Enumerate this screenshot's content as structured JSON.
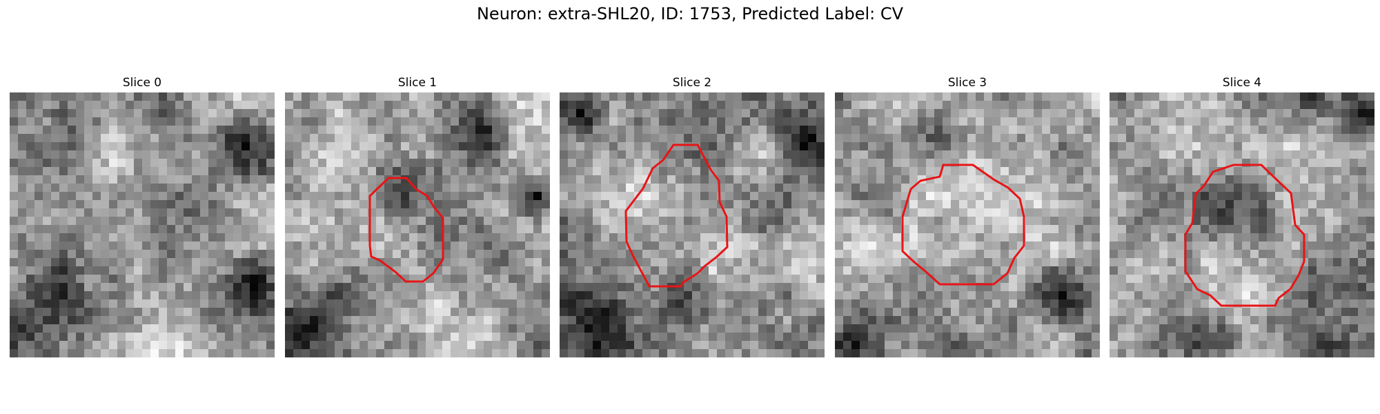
{
  "figure": {
    "title": "Neuron: extra-SHL20, ID: 1753, Predicted Label: CV",
    "outline_color": "#e81416"
  },
  "panels": [
    {
      "title": "Slice 0",
      "has_outline": false
    },
    {
      "title": "Slice 1",
      "has_outline": true
    },
    {
      "title": "Slice 2",
      "has_outline": true
    },
    {
      "title": "Slice 3",
      "has_outline": true
    },
    {
      "title": "Slice 4",
      "has_outline": true
    }
  ]
}
